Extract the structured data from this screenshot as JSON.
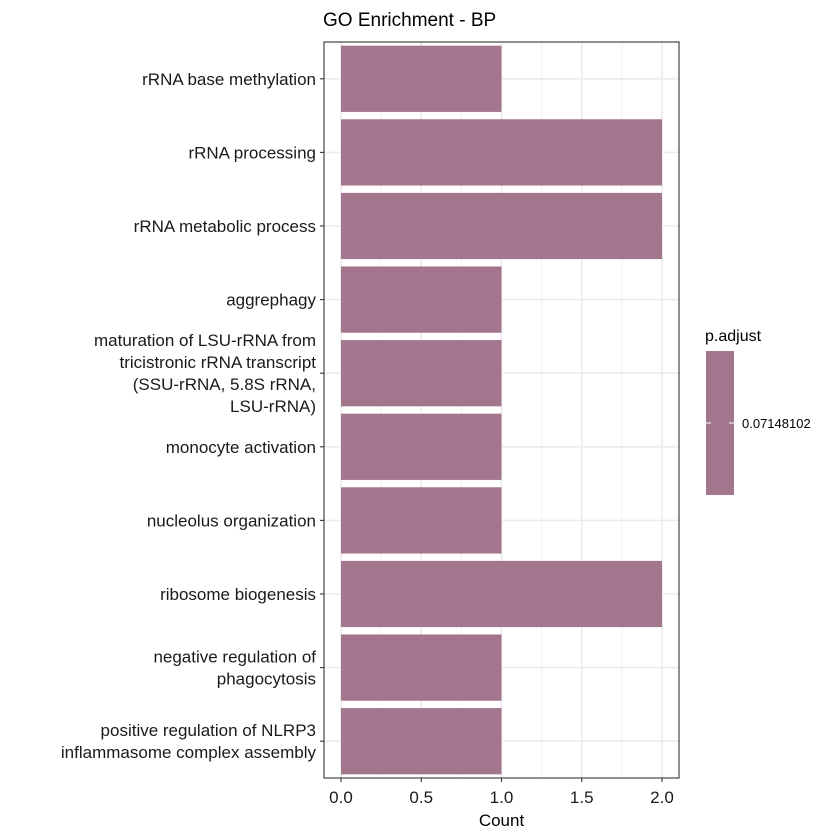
{
  "chart_data": {
    "type": "bar",
    "orientation": "horizontal",
    "title": "GO Enrichment - BP",
    "xlabel": "Count",
    "ylabel": "",
    "xlim": [
      -0.05,
      2.1
    ],
    "xticks": [
      "0.0",
      "0.5",
      "1.0",
      "1.5",
      "2.0"
    ],
    "xtick_values": [
      0,
      0.5,
      1.0,
      1.5,
      2.0
    ],
    "grid": true,
    "categories": [
      "rRNA base methylation",
      "rRNA processing",
      "rRNA metabolic process",
      "aggrephagy",
      "maturation of LSU-rRNA from tricistronic rRNA transcript (SSU-rRNA, 5.8S rRNA, LSU-rRNA)",
      "monocyte activation",
      "nucleolus organization",
      "ribosome biogenesis",
      "negative regulation of phagocytosis",
      "positive regulation of NLRP3 inflammasome complex assembly"
    ],
    "category_lines": [
      [
        "rRNA base methylation"
      ],
      [
        "rRNA processing"
      ],
      [
        "rRNA metabolic process"
      ],
      [
        "aggrephagy"
      ],
      [
        "maturation of LSU-rRNA from",
        "tricistronic rRNA transcript",
        "(SSU-rRNA, 5.8S rRNA,",
        "LSU-rRNA)"
      ],
      [
        "monocyte activation"
      ],
      [
        "nucleolus organization"
      ],
      [
        "ribosome biogenesis"
      ],
      [
        "negative regulation of",
        "phagocytosis"
      ],
      [
        "positive regulation of NLRP3",
        "inflammasome complex assembly"
      ]
    ],
    "values": [
      1,
      2,
      2,
      1,
      1,
      1,
      1,
      2,
      1,
      1
    ],
    "bar_color": "#a3768d",
    "legend": {
      "title": "p.adjust",
      "tick_label": "0.07148102",
      "placement": "right"
    }
  }
}
